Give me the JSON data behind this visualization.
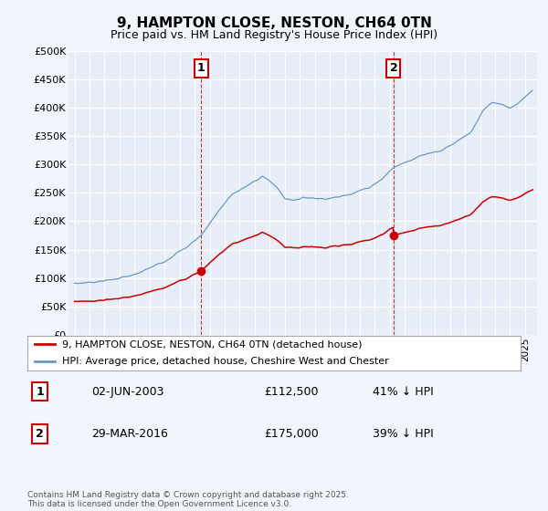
{
  "title": "9, HAMPTON CLOSE, NESTON, CH64 0TN",
  "subtitle": "Price paid vs. HM Land Registry's House Price Index (HPI)",
  "background_color": "#f2f5fb",
  "plot_bg_color": "#e8eef8",
  "ylim": [
    0,
    500000
  ],
  "yticks": [
    0,
    50000,
    100000,
    150000,
    200000,
    250000,
    300000,
    350000,
    400000,
    450000,
    500000
  ],
  "ytick_labels": [
    "£0",
    "£50K",
    "£100K",
    "£150K",
    "£200K",
    "£250K",
    "£300K",
    "£350K",
    "£400K",
    "£450K",
    "£500K"
  ],
  "sale1_date": "02-JUN-2003",
  "sale1_price": 112500,
  "sale1_x": 2003.42,
  "sale1_pct": "41% ↓ HPI",
  "sale2_date": "29-MAR-2016",
  "sale2_price": 175000,
  "sale2_x": 2016.25,
  "sale2_pct": "39% ↓ HPI",
  "red_color": "#cc0000",
  "blue_color": "#6699cc",
  "legend_label_red": "9, HAMPTON CLOSE, NESTON, CH64 0TN (detached house)",
  "legend_label_blue": "HPI: Average price, detached house, Cheshire West and Chester",
  "footer": "Contains HM Land Registry data © Crown copyright and database right 2025.\nThis data is licensed under the Open Government Licence v3.0."
}
